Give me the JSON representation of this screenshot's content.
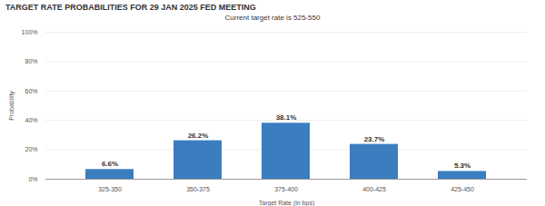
{
  "chart_data": {
    "type": "bar",
    "title": "TARGET RATE PROBABILITIES FOR 29 JAN 2025 FED MEETING",
    "subtitle": "Current target rate is 525-550",
    "x_label": "Target Rate (in bps)",
    "y_label": "Probability",
    "categories": [
      "325-350",
      "350-375",
      "375-400",
      "400-425",
      "425-450"
    ],
    "values": [
      6.6,
      26.2,
      38.1,
      23.7,
      5.3
    ],
    "value_labels": [
      "6.6%",
      "26.2%",
      "38.1%",
      "23.7%",
      "5.3%"
    ],
    "data_labels": true,
    "color": "#3a7ebf",
    "ylim": [
      0,
      100
    ],
    "yticks": [
      {
        "value": 0,
        "label": "0%"
      },
      {
        "value": 20,
        "label": "20%"
      },
      {
        "value": 40,
        "label": "40%"
      },
      {
        "value": 60,
        "label": "60%"
      },
      {
        "value": 80,
        "label": "80%"
      },
      {
        "value": 100,
        "label": "100%"
      }
    ],
    "grid": true
  }
}
